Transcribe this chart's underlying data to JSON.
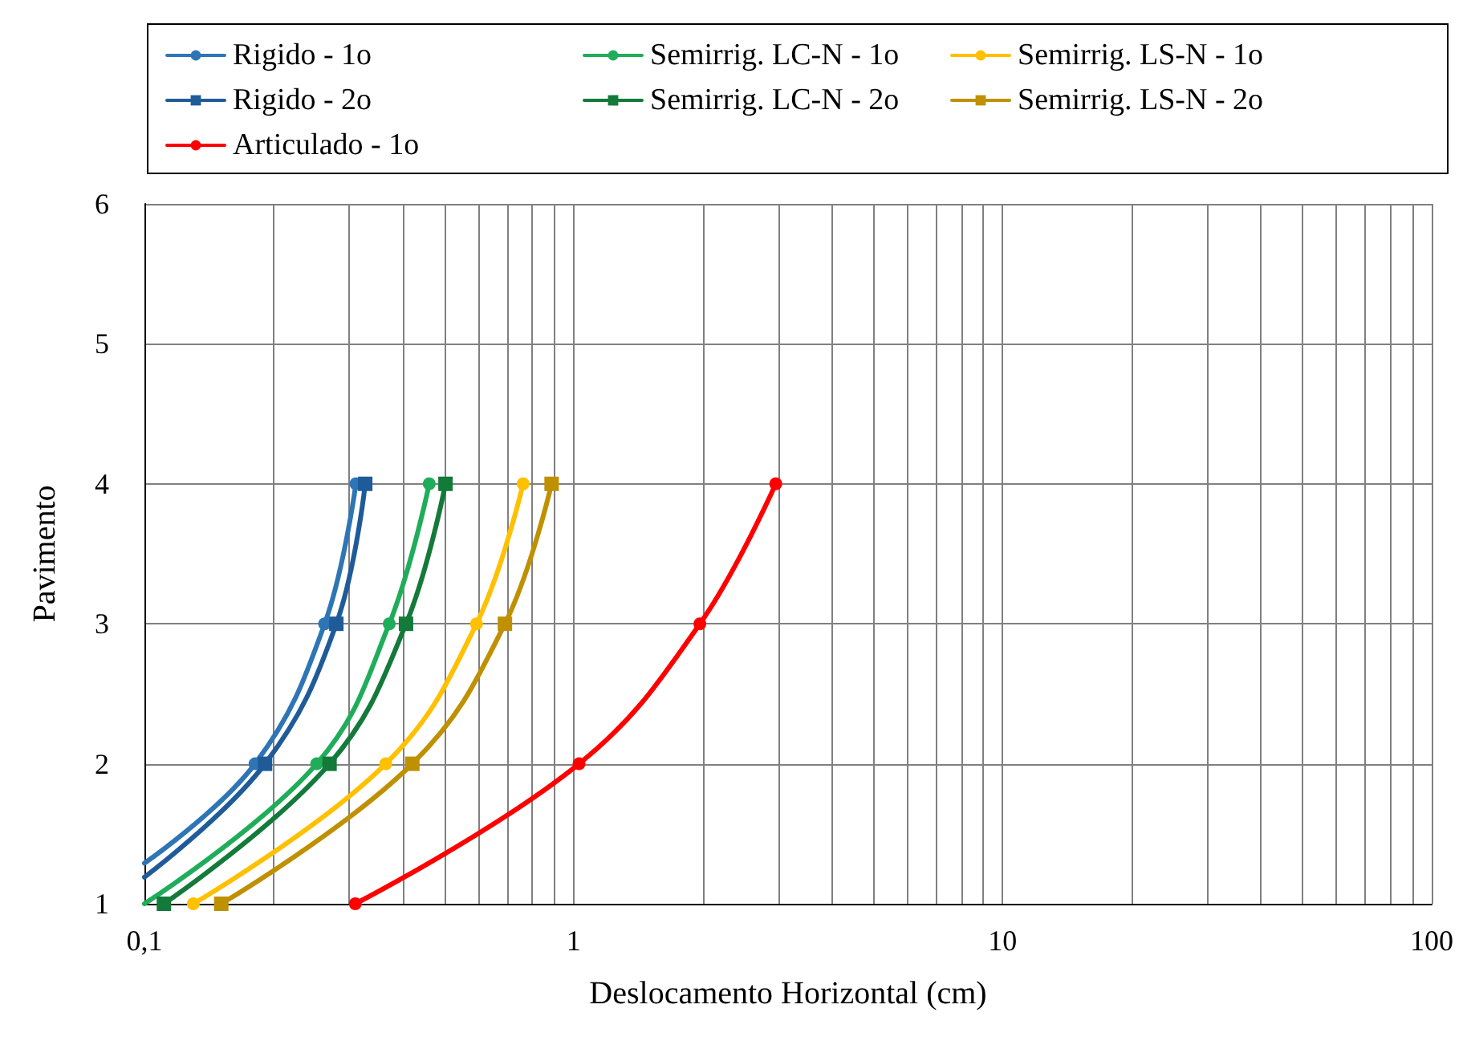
{
  "chart_data": {
    "type": "line",
    "xlabel": "Deslocamento Horizontal (cm)",
    "ylabel": "Pavimento",
    "log": "x",
    "grid": true,
    "legend": "top",
    "line_style": "solid",
    "xlim": [
      0.1,
      100
    ],
    "ylim": [
      1,
      6
    ],
    "xticks": [
      {
        "value": 0.1,
        "label": "0,1"
      },
      {
        "value": 0.2,
        "label": null
      },
      {
        "value": 0.3,
        "label": null
      },
      {
        "value": 0.4,
        "label": null
      },
      {
        "value": 0.5,
        "label": null
      },
      {
        "value": 0.6,
        "label": null
      },
      {
        "value": 0.7,
        "label": null
      },
      {
        "value": 0.8,
        "label": null
      },
      {
        "value": 0.9,
        "label": null
      },
      1,
      {
        "value": 2,
        "label": null
      },
      {
        "value": 3,
        "label": null
      },
      {
        "value": 4,
        "label": null
      },
      {
        "value": 5,
        "label": null
      },
      {
        "value": 6,
        "label": null
      },
      {
        "value": 7,
        "label": null
      },
      {
        "value": 8,
        "label": null
      },
      {
        "value": 9,
        "label": null
      },
      10,
      {
        "value": 20,
        "label": null
      },
      {
        "value": 30,
        "label": null
      },
      {
        "value": 40,
        "label": null
      },
      {
        "value": 50,
        "label": null
      },
      {
        "value": 60,
        "label": null
      },
      {
        "value": 70,
        "label": null
      },
      {
        "value": 80,
        "label": null
      },
      {
        "value": 90,
        "label": null
      },
      100
    ],
    "yticks": [
      1,
      2,
      3,
      4,
      5,
      6
    ],
    "series": [
      {
        "name": "Rigido - 1o",
        "color": "#2e75b6",
        "marker": "circle",
        "x": [
          0.1,
          0.181,
          0.263,
          0.311
        ],
        "values": [
          1.29,
          2,
          3,
          4
        ]
      },
      {
        "name": "Semirrig. LC-N - 1o",
        "color": "#1fad5a",
        "marker": "circle",
        "x": [
          0.1,
          0.252,
          0.372,
          0.461
        ],
        "values": [
          1,
          2,
          3,
          4
        ]
      },
      {
        "name": "Semirrig. LS-N - 1o",
        "color": "#ffc000",
        "marker": "circle",
        "x": [
          0.13,
          0.365,
          0.594,
          0.763
        ],
        "values": [
          1,
          2,
          3,
          4
        ]
      },
      {
        "name": "Rigido - 2o",
        "color": "#1f5b99",
        "marker": "square",
        "x": [
          0.1,
          0.191,
          0.28,
          0.327
        ],
        "values": [
          1.19,
          2,
          3,
          4
        ]
      },
      {
        "name": "Semirrig. LC-N - 2o",
        "color": "#137a3a",
        "marker": "square",
        "x": [
          0.111,
          0.27,
          0.407,
          0.503
        ],
        "values": [
          1,
          2,
          3,
          4
        ]
      },
      {
        "name": "Semirrig. LS-N - 2o",
        "color": "#bf9000",
        "marker": "square",
        "x": [
          0.151,
          0.421,
          0.692,
          0.889
        ],
        "values": [
          1,
          2,
          3,
          4
        ]
      },
      {
        "name": "Articulado - 1o",
        "color": "#ff0000",
        "marker": "circle",
        "x": [
          0.31,
          1.03,
          1.97,
          2.96
        ],
        "values": [
          1,
          2,
          3,
          4
        ]
      }
    ]
  }
}
